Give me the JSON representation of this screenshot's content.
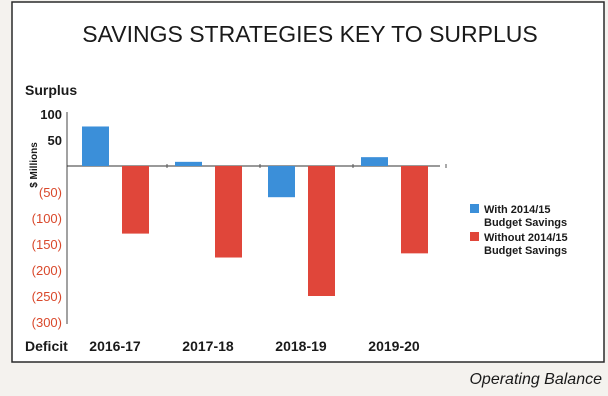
{
  "chart_data": {
    "type": "bar",
    "title": "SAVINGS STRATEGIES KEY TO SURPLUS",
    "ylabel": "$ Millions",
    "top_label": "Surplus",
    "bottom_label": "Deficit",
    "categories": [
      "2016-17",
      "2017-18",
      "2018-19",
      "2019-20"
    ],
    "ylim": [
      -300,
      100
    ],
    "y_ticks": [
      {
        "value": 100,
        "label": "100"
      },
      {
        "value": 50,
        "label": "50"
      },
      {
        "value": -50,
        "label": "(50)"
      },
      {
        "value": -100,
        "label": "(100)"
      },
      {
        "value": -150,
        "label": "(150)"
      },
      {
        "value": -200,
        "label": "(200)"
      },
      {
        "value": -250,
        "label": "(250)"
      },
      {
        "value": -300,
        "label": "(300)"
      }
    ],
    "series": [
      {
        "name": "With 2014/15 Budget Savings",
        "legend_lines": [
          "With 2014/15",
          "Budget Savings"
        ],
        "color": "#3b8fd9",
        "values": [
          76,
          8,
          -60,
          17
        ]
      },
      {
        "name": "Without 2014/15 Budget Savings",
        "legend_lines": [
          "Without 2014/15",
          "Budget Savings"
        ],
        "color": "#e0463a",
        "values": [
          -130,
          -176,
          -250,
          -168
        ]
      }
    ],
    "legend_position": "right",
    "negative_tick_color": "#d9482b",
    "grid": false
  },
  "caption": "Operating Balance"
}
